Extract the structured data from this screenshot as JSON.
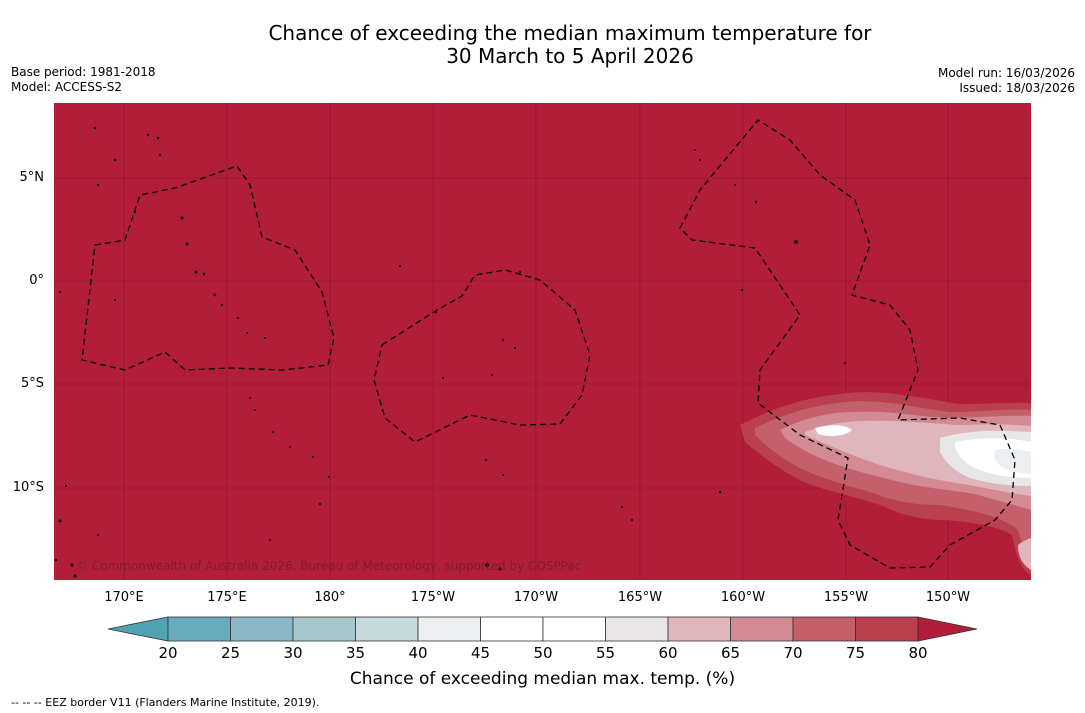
{
  "header": {
    "title_line1": "Chance of exceeding the median maximum temperature for",
    "title_line2": "30 March to 5 April 2026",
    "base_period": "Base period: 1981-2018",
    "model": "Model: ACCESS-S2",
    "model_run": "Model run: 16/03/2026",
    "issued": "Issued: 18/03/2026"
  },
  "map": {
    "background_category": ">80",
    "longitude_labels": [
      "170°E",
      "175°E",
      "180°",
      "175°W",
      "170°W",
      "165°W",
      "160°W",
      "155°W",
      "150°W"
    ],
    "latitude_labels": [
      "5°N",
      "0°",
      "5°S",
      "10°S"
    ],
    "copyright": "© Commonwealth of Australia 2026, Bureau of Meteorology, supported by COSPPac"
  },
  "colorbar": {
    "ticks": [
      "20",
      "25",
      "30",
      "35",
      "40",
      "45",
      "50",
      "55",
      "60",
      "65",
      "70",
      "75",
      "80"
    ],
    "colors": {
      "below_20": "#4fa3b3",
      "20_25": "#67adbd",
      "25_30": "#8ab7c3",
      "30_35": "#a8c7cc",
      "35_40": "#c8d9dc",
      "40_45": "#eceff1",
      "45_50": "#ffffff",
      "50_55": "#ffffff",
      "55_60": "#e8e6e7",
      "60_65": "#dfb6bc",
      "65_70": "#d38a92",
      "70_75": "#c45f6c",
      "75_80": "#b9404f",
      "above_80": "#b21d3a"
    },
    "label": "Chance of exceeding median max. temp. (%)"
  },
  "legend": {
    "eez": "--  --  -- EEZ border V11 (Flanders Marine Institute, 2019)."
  }
}
